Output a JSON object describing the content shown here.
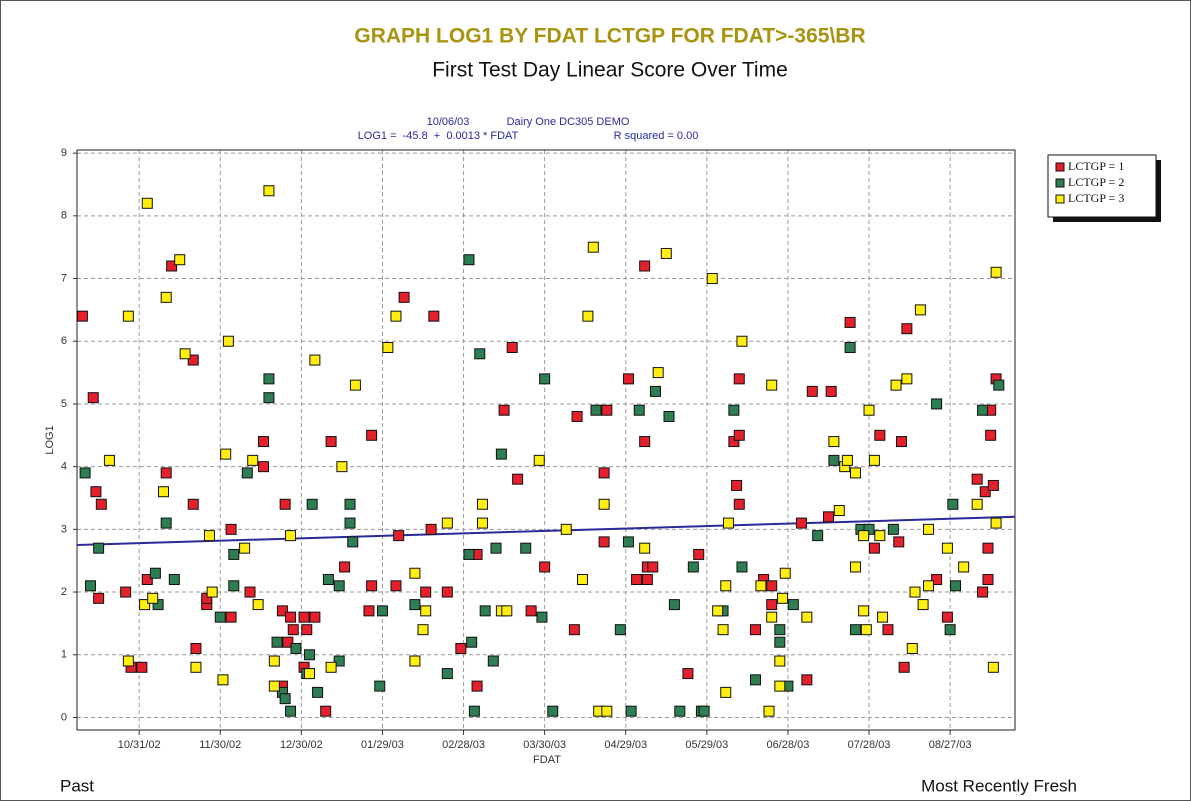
{
  "chart_data": {
    "type": "scatter",
    "title": "GRAPH LOG1 BY FDAT LCTGP FOR FDAT>-365\\BR",
    "subtitle": "First Test Day Linear Score Over Time",
    "run_date": "10/06/03",
    "source": "Dairy One DC305 DEMO",
    "equation": "LOG1 =  -45.8  +  0.0013 * FDAT",
    "r_squared": "R squared = 0.00",
    "x_label": "FDAT",
    "y_label": "LOG1",
    "left_note": "Past",
    "right_note": "Most Recently Fresh",
    "grid": true,
    "legend": "upper right outside",
    "xlim": [
      "2002-10-08",
      "2003-09-20"
    ],
    "xticks": [
      {
        "value": "2002-10-31",
        "label": "10/31/02"
      },
      {
        "value": "2002-11-30",
        "label": "11/30/02"
      },
      {
        "value": "2002-12-30",
        "label": "12/30/02"
      },
      {
        "value": "2003-01-29",
        "label": "01/29/03"
      },
      {
        "value": "2003-02-28",
        "label": "02/28/03"
      },
      {
        "value": "2003-03-30",
        "label": "03/30/03"
      },
      {
        "value": "2003-04-29",
        "label": "04/29/03"
      },
      {
        "value": "2003-05-29",
        "label": "05/29/03"
      },
      {
        "value": "2003-06-28",
        "label": "06/28/03"
      },
      {
        "value": "2003-07-28",
        "label": "07/28/03"
      },
      {
        "value": "2003-08-27",
        "label": "08/27/03"
      }
    ],
    "ylim": [
      -0.2,
      9.05
    ],
    "yticks": [
      0,
      1,
      2,
      3,
      4,
      5,
      6,
      7,
      8,
      9
    ],
    "trend": {
      "color": "#2a2a9a",
      "x": [
        "2002-10-08",
        "2003-09-20"
      ],
      "values": [
        2.75,
        3.2
      ]
    },
    "series": [
      {
        "name": "LCTGP = 1",
        "color": "#e3202b",
        "x": [
          "2002-10-10",
          "2002-10-14",
          "2002-10-15",
          "2002-10-16",
          "2002-10-17",
          "2002-10-26",
          "2002-10-28",
          "2002-11-01",
          "2002-11-03",
          "2002-11-10",
          "2002-11-12",
          "2002-11-20",
          "2002-11-20",
          "2002-11-21",
          "2002-11-25",
          "2002-11-25",
          "2002-12-04",
          "2002-12-04",
          "2002-12-11",
          "2002-12-16",
          "2002-12-16",
          "2002-12-23",
          "2002-12-23",
          "2002-12-24",
          "2002-12-25",
          "2002-12-26",
          "2002-12-27",
          "2002-12-31",
          "2002-12-31",
          "2003-01-01",
          "2003-01-04",
          "2003-01-08",
          "2003-01-10",
          "2003-01-15",
          "2003-01-24",
          "2003-01-25",
          "2003-01-25",
          "2003-02-03",
          "2003-02-04",
          "2003-02-06",
          "2003-02-14",
          "2003-02-16",
          "2003-02-17",
          "2003-02-22",
          "2003-02-27",
          "2003-03-05",
          "2003-03-05",
          "2003-03-15",
          "2003-03-18",
          "2003-03-20",
          "2003-03-25",
          "2003-03-30",
          "2003-04-10",
          "2003-04-11",
          "2003-04-21",
          "2003-04-21",
          "2003-04-22",
          "2003-04-30",
          "2003-05-03",
          "2003-05-06",
          "2003-05-06",
          "2003-05-07",
          "2003-05-07",
          "2003-05-09",
          "2003-05-22",
          "2003-05-26",
          "2003-06-08",
          "2003-06-09",
          "2003-06-10",
          "2003-06-10",
          "2003-06-10",
          "2003-06-16",
          "2003-06-19",
          "2003-06-22",
          "2003-06-22",
          "2003-07-03",
          "2003-07-05",
          "2003-07-07",
          "2003-07-13",
          "2003-07-14",
          "2003-07-21",
          "2003-07-30",
          "2003-08-01",
          "2003-08-04",
          "2003-08-08",
          "2003-08-09",
          "2003-08-10",
          "2003-08-11",
          "2003-08-22",
          "2003-08-26",
          "2003-09-06",
          "2003-09-08",
          "2003-09-09",
          "2003-09-10",
          "2003-09-10",
          "2003-09-11",
          "2003-09-11",
          "2003-09-12",
          "2003-09-13"
        ],
        "values": [
          6.4,
          5.1,
          3.6,
          1.9,
          3.4,
          2.0,
          0.8,
          0.8,
          2.2,
          3.9,
          7.2,
          5.7,
          3.4,
          1.1,
          1.8,
          1.9,
          3.0,
          1.6,
          2.0,
          4.4,
          4.0,
          0.5,
          1.7,
          3.4,
          1.2,
          1.6,
          1.4,
          0.8,
          1.6,
          1.4,
          1.6,
          0.1,
          4.4,
          2.4,
          1.7,
          4.5,
          2.1,
          2.1,
          2.9,
          6.7,
          2.0,
          3.0,
          6.4,
          2.0,
          1.1,
          2.6,
          0.5,
          4.9,
          5.9,
          3.8,
          1.7,
          2.4,
          1.4,
          4.8,
          3.9,
          2.8,
          4.9,
          5.4,
          2.2,
          7.2,
          4.4,
          2.2,
          2.4,
          2.4,
          0.7,
          2.6,
          4.4,
          3.7,
          4.5,
          5.4,
          3.4,
          1.4,
          2.2,
          1.8,
          2.1,
          3.1,
          0.6,
          5.2,
          3.2,
          5.2,
          6.3,
          2.7,
          4.5,
          1.4,
          2.8,
          4.4,
          0.8,
          6.2,
          2.2,
          1.6,
          3.8,
          2.0,
          3.6,
          2.7,
          2.2,
          4.9,
          4.5,
          3.7,
          5.4
        ]
      },
      {
        "name": "LCTGP = 2",
        "color": "#2f7d52",
        "x": [
          "2002-10-11",
          "2002-10-13",
          "2002-10-16",
          "2002-11-06",
          "2002-11-07",
          "2002-11-10",
          "2002-11-13",
          "2002-11-30",
          "2002-12-05",
          "2002-12-05",
          "2002-12-10",
          "2002-12-18",
          "2002-12-18",
          "2002-12-21",
          "2002-12-23",
          "2002-12-24",
          "2002-12-26",
          "2002-12-28",
          "2003-01-01",
          "2003-01-02",
          "2003-01-03",
          "2003-01-05",
          "2003-01-09",
          "2003-01-13",
          "2003-01-13",
          "2003-01-17",
          "2003-01-17",
          "2003-01-18",
          "2003-01-28",
          "2003-01-29",
          "2003-02-10",
          "2003-02-22",
          "2003-03-02",
          "2003-03-02",
          "2003-03-03",
          "2003-03-04",
          "2003-03-06",
          "2003-03-08",
          "2003-03-11",
          "2003-03-12",
          "2003-03-14",
          "2003-03-23",
          "2003-03-29",
          "2003-03-30",
          "2003-04-02",
          "2003-04-18",
          "2003-04-27",
          "2003-04-30",
          "2003-05-01",
          "2003-05-04",
          "2003-05-10",
          "2003-05-15",
          "2003-05-17",
          "2003-05-19",
          "2003-05-24",
          "2003-05-27",
          "2003-05-28",
          "2003-06-04",
          "2003-06-08",
          "2003-06-11",
          "2003-06-16",
          "2003-06-25",
          "2003-06-25",
          "2003-06-28",
          "2003-06-30",
          "2003-07-09",
          "2003-07-15",
          "2003-07-21",
          "2003-07-23",
          "2003-07-25",
          "2003-07-28",
          "2003-08-06",
          "2003-08-22",
          "2003-08-27",
          "2003-08-28",
          "2003-08-29",
          "2003-09-08",
          "2003-09-14"
        ],
        "values": [
          3.9,
          2.1,
          2.7,
          2.3,
          1.8,
          3.1,
          2.2,
          1.6,
          2.6,
          2.1,
          3.9,
          5.4,
          5.1,
          1.2,
          0.4,
          0.3,
          0.1,
          1.1,
          0.7,
          1.0,
          3.4,
          0.4,
          2.2,
          2.1,
          0.9,
          3.4,
          3.1,
          2.8,
          0.5,
          1.7,
          1.8,
          0.7,
          2.6,
          7.3,
          1.2,
          0.1,
          5.8,
          1.7,
          0.9,
          2.7,
          4.2,
          2.7,
          1.6,
          5.4,
          0.1,
          4.9,
          1.4,
          2.8,
          0.1,
          4.9,
          5.2,
          4.8,
          1.8,
          0.1,
          2.4,
          0.1,
          0.1,
          1.7,
          4.9,
          2.4,
          0.6,
          1.4,
          1.2,
          0.5,
          1.8,
          2.9,
          4.1,
          5.9,
          1.4,
          3.0,
          3.0,
          3.0,
          5.0,
          1.4,
          3.4,
          2.1,
          4.9,
          5.3
        ]
      },
      {
        "name": "LCTGP = 3",
        "color": "#ffee10",
        "x": [
          "2002-10-20",
          "2002-10-27",
          "2002-10-27",
          "2002-11-02",
          "2002-11-03",
          "2002-11-05",
          "2002-11-09",
          "2002-11-10",
          "2002-11-15",
          "2002-11-17",
          "2002-11-21",
          "2002-11-26",
          "2002-11-27",
          "2002-12-01",
          "2002-12-02",
          "2002-12-03",
          "2002-12-09",
          "2002-12-12",
          "2002-12-14",
          "2002-12-18",
          "2002-12-20",
          "2002-12-20",
          "2002-12-26",
          "2003-01-02",
          "2003-01-04",
          "2003-01-10",
          "2003-01-14",
          "2003-01-19",
          "2003-01-31",
          "2003-02-03",
          "2003-02-10",
          "2003-02-10",
          "2003-02-13",
          "2003-02-14",
          "2003-02-22",
          "2003-03-07",
          "2003-03-07",
          "2003-03-14",
          "2003-03-16",
          "2003-03-28",
          "2003-04-07",
          "2003-04-13",
          "2003-04-15",
          "2003-04-17",
          "2003-04-19",
          "2003-04-21",
          "2003-04-22",
          "2003-05-06",
          "2003-05-11",
          "2003-05-14",
          "2003-05-31",
          "2003-06-02",
          "2003-06-04",
          "2003-06-05",
          "2003-06-05",
          "2003-06-06",
          "2003-06-11",
          "2003-06-18",
          "2003-06-21",
          "2003-06-22",
          "2003-06-22",
          "2003-06-25",
          "2003-06-25",
          "2003-06-26",
          "2003-06-27",
          "2003-07-05",
          "2003-07-15",
          "2003-07-17",
          "2003-07-19",
          "2003-07-20",
          "2003-07-23",
          "2003-07-23",
          "2003-07-26",
          "2003-07-26",
          "2003-07-27",
          "2003-07-28",
          "2003-07-30",
          "2003-08-01",
          "2003-08-02",
          "2003-08-07",
          "2003-08-11",
          "2003-08-13",
          "2003-08-14",
          "2003-08-16",
          "2003-08-17",
          "2003-08-19",
          "2003-08-19",
          "2003-08-26",
          "2003-09-01",
          "2003-09-06",
          "2003-09-12",
          "2003-09-13",
          "2003-09-13"
        ],
        "values": [
          4.1,
          6.4,
          0.9,
          1.8,
          8.2,
          1.9,
          3.6,
          6.7,
          7.3,
          5.8,
          0.8,
          2.9,
          2.0,
          0.6,
          4.2,
          6.0,
          2.7,
          4.1,
          1.8,
          8.4,
          0.9,
          0.5,
          2.9,
          0.7,
          5.7,
          0.8,
          4.0,
          5.3,
          5.9,
          6.4,
          0.9,
          2.3,
          1.4,
          1.7,
          3.1,
          3.4,
          3.1,
          1.7,
          1.7,
          4.1,
          3.0,
          2.2,
          6.4,
          7.5,
          0.1,
          3.4,
          0.1,
          2.7,
          5.5,
          7.4,
          7.0,
          1.7,
          1.4,
          0.4,
          2.1,
          3.1,
          6.0,
          2.1,
          0.1,
          1.6,
          5.3,
          0.5,
          0.9,
          1.9,
          2.3,
          1.6,
          4.4,
          3.3,
          4.0,
          4.1,
          3.9,
          2.4,
          2.9,
          1.7,
          1.4,
          4.9,
          4.1,
          2.9,
          1.6,
          5.3,
          5.4,
          1.1,
          2.0,
          6.5,
          1.8,
          2.1,
          3.0,
          2.7,
          2.4,
          3.4,
          0.8,
          3.1,
          7.1
        ]
      }
    ]
  }
}
